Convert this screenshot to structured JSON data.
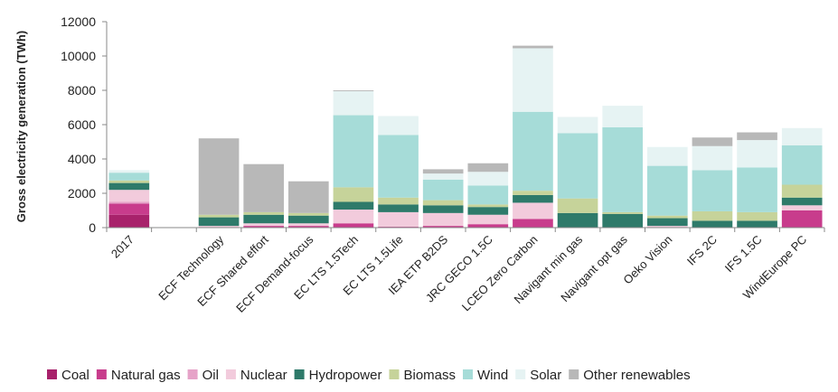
{
  "chart_data": {
    "type": "bar",
    "stacked": true,
    "ylabel": "Gross electricity generation (TWh)",
    "ylim": [
      0,
      12000
    ],
    "yticks": [
      0,
      2000,
      4000,
      6000,
      8000,
      10000,
      12000
    ],
    "ytick_labels": [
      "0",
      "2000",
      "4000",
      "6000",
      "8000",
      "10000",
      "12000"
    ],
    "grid": false,
    "legend_position": "bottom",
    "categories": [
      "2017",
      "",
      "ECF Technology",
      "ECF Shared effort",
      "ECF Demand-focus",
      "EC LTS 1.5Tech",
      "EC LTS 1.5Life",
      "IEA ETP B2DS",
      "JRC GECO 1.5C",
      "LCEO Zero Carbon",
      "Navigant min gas",
      "Navigant opt gas",
      "Oeko Vision",
      "IFS 2C",
      "IFS 1.5C",
      "WindEurope PC"
    ],
    "series": [
      {
        "name": "Coal",
        "color": "#a8226b",
        "values": [
          750,
          null,
          0,
          0,
          0,
          0,
          0,
          0,
          0,
          0,
          0,
          0,
          0,
          0,
          0,
          0
        ]
      },
      {
        "name": "Natural gas",
        "color": "#c83c8c",
        "values": [
          650,
          null,
          0,
          100,
          100,
          250,
          50,
          100,
          200,
          500,
          0,
          0,
          0,
          0,
          0,
          1000
        ]
      },
      {
        "name": "Oil",
        "color": "#e6a3c8",
        "values": [
          100,
          null,
          0,
          0,
          0,
          0,
          0,
          0,
          0,
          0,
          0,
          0,
          0,
          0,
          0,
          0
        ]
      },
      {
        "name": "Nuclear",
        "color": "#f2cbdc",
        "values": [
          700,
          null,
          100,
          150,
          150,
          800,
          850,
          750,
          550,
          950,
          0,
          0,
          100,
          0,
          0,
          300
        ]
      },
      {
        "name": "Hydropower",
        "color": "#2e7a6a",
        "values": [
          400,
          null,
          500,
          500,
          450,
          450,
          450,
          450,
          450,
          450,
          850,
          800,
          450,
          400,
          400,
          450
        ]
      },
      {
        "name": "Biomass",
        "color": "#c6d39a",
        "values": [
          150,
          null,
          150,
          150,
          150,
          850,
          400,
          300,
          150,
          250,
          850,
          100,
          150,
          550,
          500,
          750
        ]
      },
      {
        "name": "Wind",
        "color": "#a6dcd8",
        "values": [
          450,
          null,
          0,
          0,
          0,
          4200,
          3650,
          1200,
          1100,
          4600,
          3800,
          4950,
          2900,
          2400,
          2600,
          2300
        ]
      },
      {
        "name": "Solar",
        "color": "#e6f3f3",
        "values": [
          150,
          null,
          0,
          0,
          0,
          1400,
          1100,
          350,
          800,
          3700,
          950,
          1250,
          1100,
          1400,
          1600,
          1000
        ]
      },
      {
        "name": "Other renewables",
        "color": "#b8b8b8",
        "values": [
          0,
          null,
          4450,
          2800,
          1850,
          50,
          0,
          250,
          500,
          150,
          0,
          0,
          0,
          500,
          450,
          0
        ]
      }
    ]
  }
}
